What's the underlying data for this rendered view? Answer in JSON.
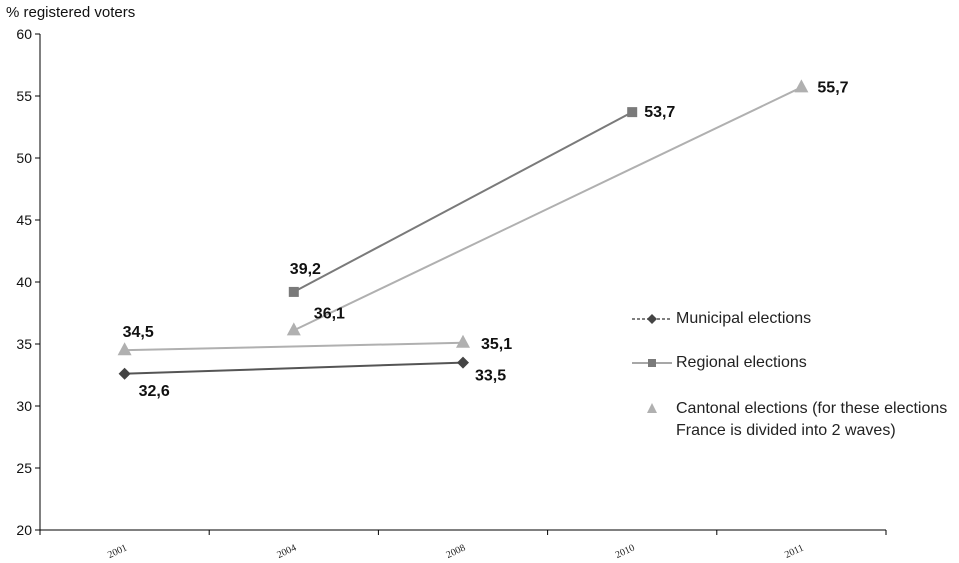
{
  "chart_data": {
    "type": "line",
    "ylabel": "% registered voters",
    "xlabel": "",
    "ylim": [
      20,
      60
    ],
    "yticks": [
      20,
      25,
      30,
      35,
      40,
      45,
      50,
      55,
      60
    ],
    "categories": [
      "2001",
      "2004",
      "2008",
      "2010",
      "2011"
    ],
    "grid": false,
    "legend_position": "right",
    "series": [
      {
        "name": "Municipal elections",
        "marker": "diamond",
        "line_style": "dashed",
        "color": "#555555",
        "points": [
          {
            "x": "2001",
            "y": 32.6,
            "label": "32,6"
          },
          {
            "x": "2008",
            "y": 33.5,
            "label": "33,5"
          }
        ]
      },
      {
        "name": "Regional elections",
        "marker": "square",
        "line_style": "solid",
        "color": "#7a7a7a",
        "points": [
          {
            "x": "2004",
            "y": 39.2,
            "label": "39,2"
          },
          {
            "x": "2010",
            "y": 53.7,
            "label": "53,7"
          }
        ]
      },
      {
        "name": "Cantonal elections (for these elections\nFrance is divided into 2 waves)",
        "marker": "triangle",
        "line_style": "solid",
        "color": "#b0b0b0",
        "points": [
          {
            "x": "2001",
            "y": 34.5,
            "label": "34,5"
          },
          {
            "x": "2004",
            "y": 36.1,
            "label": "36,1"
          },
          {
            "x": "2008",
            "y": 35.1,
            "label": "35,1"
          },
          {
            "x": "2011",
            "y": 55.7,
            "label": "55,7"
          }
        ],
        "segments": [
          [
            "2001",
            "2008"
          ],
          [
            "2004",
            "2011"
          ]
        ]
      }
    ]
  }
}
